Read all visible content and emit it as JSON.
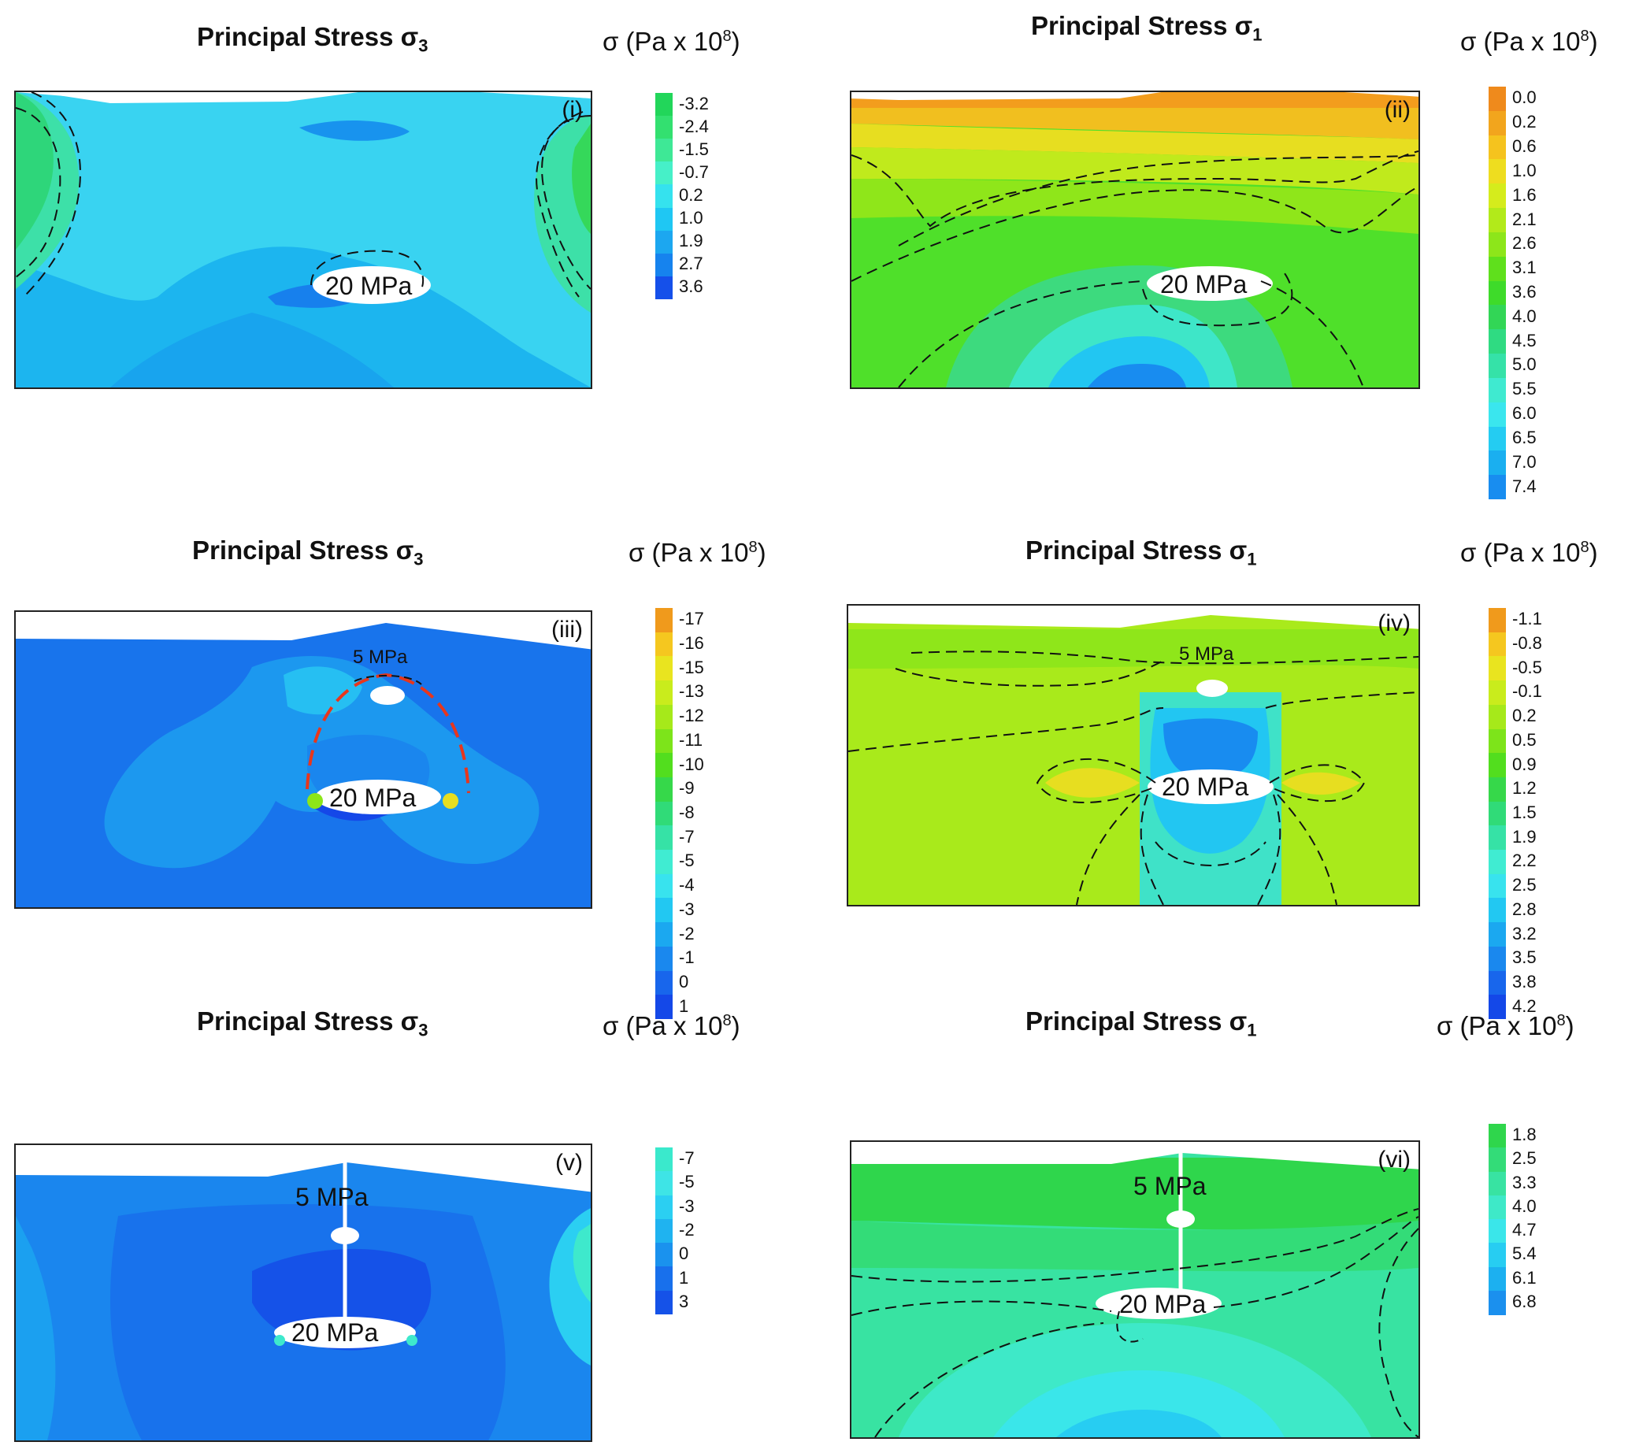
{
  "panels": [
    {
      "id": "i",
      "title_main": "Principal Stress σ",
      "title_sub": "3",
      "unit_main": "σ (Pa x 10",
      "unit_sup": "8",
      "unit_end": ")",
      "tag": "(i)",
      "labels": [
        "20 MPa"
      ],
      "colorbar": {
        "ticks": [
          "-3.2",
          "-2.4",
          "-1.5",
          "-0.7",
          "0.2",
          "1.0",
          "1.9",
          "2.7",
          "3.6"
        ],
        "colors": [
          "#22d65a",
          "#33e070",
          "#3ee896",
          "#46f0c8",
          "#35e2ee",
          "#1fc7f3",
          "#1ca7f0",
          "#1683ee",
          "#1550ea"
        ]
      }
    },
    {
      "id": "ii",
      "title_main": "Principal Stress σ",
      "title_sub": "1",
      "unit_main": "σ (Pa x 10",
      "unit_sup": "8",
      "unit_end": ")",
      "tag": "(ii)",
      "labels": [
        "20 MPa"
      ],
      "colorbar": {
        "ticks": [
          "0.0",
          "0.2",
          "0.6",
          "1.0",
          "1.6",
          "2.1",
          "2.6",
          "3.1",
          "3.6",
          "4.0",
          "4.5",
          "5.0",
          "5.5",
          "6.0",
          "6.5",
          "7.0",
          "7.4"
        ],
        "colors": [
          "#ef8a1c",
          "#f2a51d",
          "#f5c31e",
          "#eedd1f",
          "#d5ec1c",
          "#b2ea1a",
          "#8de61a",
          "#5fe01c",
          "#3edb2a",
          "#32d656",
          "#2fdb82",
          "#35e2a8",
          "#3fead0",
          "#3ae6ee",
          "#24ccf2",
          "#1aaff0",
          "#188df0"
        ]
      }
    },
    {
      "id": "iii",
      "title_main": "Principal Stress σ",
      "title_sub": "3",
      "unit_main": "σ (Pa x 10",
      "unit_sup": "8",
      "unit_end": ")",
      "tag": "(iii)",
      "labels": [
        "5 MPa",
        "20 MPa"
      ],
      "colorbar": {
        "ticks": [
          "-17",
          "-16",
          "-15",
          "-13",
          "-12",
          "-11",
          "-10",
          "-9",
          "-8",
          "-7",
          "-5",
          "-4",
          "-3",
          "-2",
          "-1",
          "0",
          "1"
        ],
        "colors": [
          "#f09a1c",
          "#f5c71f",
          "#e9e41f",
          "#c9ec1c",
          "#a6e91a",
          "#7de41a",
          "#52de1e",
          "#36d84a",
          "#30db78",
          "#36e2a6",
          "#40ecd2",
          "#38e3ee",
          "#22c8f2",
          "#1ba8f0",
          "#1a88ee",
          "#1866ec",
          "#1448e8"
        ]
      }
    },
    {
      "id": "iv",
      "title_main": "Principal Stress σ",
      "title_sub": "1",
      "unit_main": "σ (Pa x 10",
      "unit_sup": "8",
      "unit_end": ")",
      "tag": "(iv)",
      "labels": [
        "5 MPa",
        "20 MPa"
      ],
      "colorbar": {
        "ticks": [
          "-1.1",
          "-0.8",
          "-0.5",
          "-0.1",
          "0.2",
          "0.5",
          "0.9",
          "1.2",
          "1.5",
          "1.9",
          "2.2",
          "2.5",
          "2.8",
          "3.2",
          "3.5",
          "3.8",
          "4.2"
        ],
        "colors": [
          "#f09a1c",
          "#f5c71f",
          "#e9e41f",
          "#c9ec1c",
          "#a6e91a",
          "#7de41a",
          "#52de1e",
          "#36d84a",
          "#30db78",
          "#36e2a6",
          "#40ecd2",
          "#38e3ee",
          "#22c8f2",
          "#1ba8f0",
          "#1a88ee",
          "#1866ec",
          "#1448e8"
        ]
      }
    },
    {
      "id": "v",
      "title_main": "Principal Stress σ",
      "title_sub": "3",
      "unit_main": "σ (Pa x 10",
      "unit_sup": "8",
      "unit_end": ")",
      "tag": "(v)",
      "labels": [
        "5 MPa",
        "20 MPa"
      ],
      "colorbar": {
        "ticks": [
          "-7",
          "-5",
          "-3",
          "-2",
          "0",
          "1",
          "3"
        ],
        "colors": [
          "#3ae9cc",
          "#3ee4e6",
          "#2bcff2",
          "#1fb3f0",
          "#1a92ee",
          "#1870ec",
          "#1552e8"
        ]
      }
    },
    {
      "id": "vi",
      "title_main": "Principal Stress σ",
      "title_sub": "1",
      "unit_main": "σ (Pa x 10",
      "unit_sup": "8",
      "unit_end": ")",
      "tag": "(vi)",
      "labels": [
        "5 MPa",
        "20 MPa"
      ],
      "colorbar": {
        "ticks": [
          "1.8",
          "2.5",
          "3.3",
          "4.0",
          "4.7",
          "5.4",
          "6.1",
          "6.8"
        ],
        "colors": [
          "#2fd64c",
          "#33dc78",
          "#38e3a2",
          "#3ee9c8",
          "#3ae6ea",
          "#27cdf2",
          "#1cb0f0",
          "#1b90ee"
        ]
      }
    }
  ],
  "chart_data": [
    {
      "type": "heatmap",
      "panel": "(i)",
      "title": "Principal Stress σ3",
      "unit": "σ (Pa x 10^8)",
      "scale_ticks": [
        -3.2,
        -2.4,
        -1.5,
        -0.7,
        0.2,
        1.0,
        1.9,
        2.7,
        3.6
      ],
      "annotations": [
        "20 MPa"
      ]
    },
    {
      "type": "heatmap",
      "panel": "(ii)",
      "title": "Principal Stress σ1",
      "unit": "σ (Pa x 10^8)",
      "scale_ticks": [
        0.0,
        0.2,
        0.6,
        1.0,
        1.6,
        2.1,
        2.6,
        3.1,
        3.6,
        4.0,
        4.5,
        5.0,
        5.5,
        6.0,
        6.5,
        7.0,
        7.4
      ],
      "annotations": [
        "20 MPa"
      ]
    },
    {
      "type": "heatmap",
      "panel": "(iii)",
      "title": "Principal Stress σ3",
      "unit": "σ (Pa x 10^8)",
      "scale_ticks": [
        -17,
        -16,
        -15,
        -13,
        -12,
        -11,
        -10,
        -9,
        -8,
        -7,
        -5,
        -4,
        -3,
        -2,
        -1,
        0,
        1
      ],
      "annotations": [
        "5 MPa",
        "20 MPa"
      ]
    },
    {
      "type": "heatmap",
      "panel": "(iv)",
      "title": "Principal Stress σ1",
      "unit": "σ (Pa x 10^8)",
      "scale_ticks": [
        -1.1,
        -0.8,
        -0.5,
        -0.1,
        0.2,
        0.5,
        0.9,
        1.2,
        1.5,
        1.9,
        2.2,
        2.5,
        2.8,
        3.2,
        3.5,
        3.8,
        4.2
      ],
      "annotations": [
        "5 MPa",
        "20 MPa"
      ]
    },
    {
      "type": "heatmap",
      "panel": "(v)",
      "title": "Principal Stress σ3",
      "unit": "σ (Pa x 10^8)",
      "scale_ticks": [
        -7,
        -5,
        -3,
        -2,
        0,
        1,
        3
      ],
      "annotations": [
        "5 MPa",
        "20 MPa"
      ]
    },
    {
      "type": "heatmap",
      "panel": "(vi)",
      "title": "Principal Stress σ1",
      "unit": "σ (Pa x 10^8)",
      "scale_ticks": [
        1.8,
        2.5,
        3.3,
        4.0,
        4.7,
        5.4,
        6.1,
        6.8
      ],
      "annotations": [
        "5 MPa",
        "20 MPa"
      ]
    }
  ]
}
